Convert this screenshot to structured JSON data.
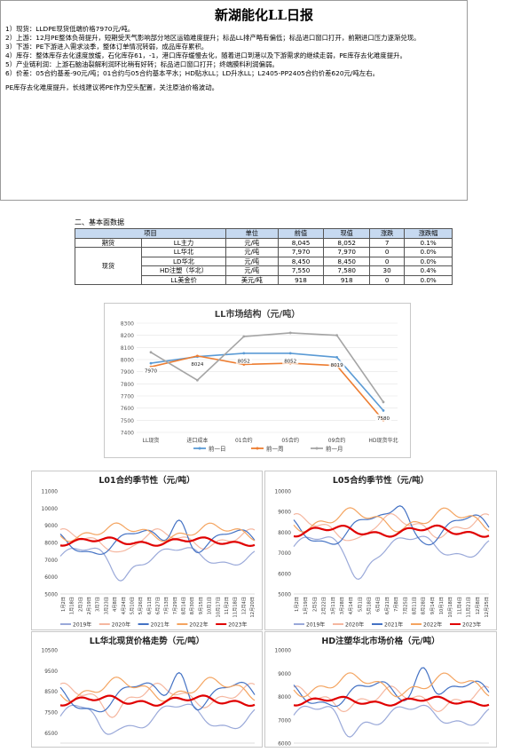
{
  "report": {
    "title": "新湖能化LL日报",
    "lines": [
      "1）现货：LLDPE现货低端价格7970元/吨。",
      "2）上游：12月PE整体负荷提升，短期受天气影响部分地区运输难度提升；标品LL排产略有偏低；标品进口窗口打开，前期进口压力逐渐兑现。",
      "3）下游：PE下游进入需求淡季，整体订单情况转弱，成品库存累积。",
      "4）库存：整体库存去化速度放缓，石化库存61，-1，港口库存缓慢去化，随着进口到港以及下游需求的继续走弱，PE库存去化难度提升。",
      "5）产业链利润：上游石脑油裂解利润环比稍有好转；标品进口窗口打开；终端膜料利润偏弱。",
      "6）价差：05合约基差-90元/吨；01合约与05合约基本平水；HD贴水LL；LD升水LL；L2405-PP2405合约价差620元/吨左右。"
    ],
    "conclusion": "PE库存去化难度提升，长线建议将PE作为空头配置，关注原油价格波动。"
  },
  "section_title": "二、基本面数据",
  "table": {
    "headers": [
      "项目",
      "",
      "单位",
      "前值",
      "现值",
      "涨跌",
      "涨跌幅"
    ],
    "rows": [
      {
        "group": "期货",
        "item": "LL主力",
        "unit": "元/吨",
        "prev": "8,045",
        "curr": "8,052",
        "chg": "7",
        "pct": "0.1%"
      },
      {
        "group": "现货",
        "item": "LL华北",
        "unit": "元/吨",
        "prev": "7,970",
        "curr": "7,970",
        "chg": "0",
        "pct": "0.0%"
      },
      {
        "group": "",
        "item": "LD华北",
        "unit": "元/吨",
        "prev": "8,450",
        "curr": "8,450",
        "chg": "0",
        "pct": "0.0%"
      },
      {
        "group": "",
        "item": "HD注塑（华北）",
        "unit": "元/吨",
        "prev": "7,550",
        "curr": "7,580",
        "chg": "30",
        "pct": "0.4%"
      },
      {
        "group": "",
        "item": "LL美金价",
        "unit": "美元/吨",
        "prev": "918",
        "curr": "918",
        "chg": "0",
        "pct": "0.0%"
      }
    ]
  },
  "chart_data": [
    {
      "type": "line",
      "title": "LL市场结构（元/吨）",
      "categories": [
        "LL现货",
        "进口成本",
        "01合约",
        "05合约",
        "09合约",
        "HD现货华北"
      ],
      "ylim": [
        7400,
        8300
      ],
      "yticks": [
        7400,
        7500,
        7600,
        7700,
        7800,
        7900,
        8000,
        8100,
        8200,
        8300
      ],
      "series": [
        {
          "name": "前一日",
          "color": "#5b9bd5",
          "values": [
            7970,
            8024,
            8052,
            8052,
            8019,
            7580
          ]
        },
        {
          "name": "前一周",
          "color": "#ed7d31",
          "values": [
            7940,
            8030,
            7960,
            7970,
            7950,
            7500
          ]
        },
        {
          "name": "前一月",
          "color": "#a5a5a5",
          "values": [
            8060,
            7830,
            8190,
            8220,
            8200,
            7650
          ]
        }
      ],
      "data_labels": [
        "7970",
        "8024",
        "8052",
        "8052",
        "8019",
        "7580"
      ]
    },
    {
      "type": "line",
      "title": "L01合约季节性（元/吨）",
      "ylim": [
        5000,
        11000
      ],
      "yticks": [
        5000,
        6000,
        7000,
        8000,
        9000,
        10000,
        11000
      ],
      "x_ticks": [
        "1月2日",
        "1月18日",
        "2月3日",
        "2月19日",
        "3月7日",
        "3月23日",
        "4月8日",
        "4月24日",
        "5月10日",
        "5月26日",
        "6月11日",
        "6月27日",
        "7月13日",
        "7月29日",
        "8月14日",
        "8月30日",
        "9月15日",
        "10月1日",
        "10月17日",
        "11月2日",
        "11月18日",
        "12月4日",
        "12月20日"
      ],
      "series": [
        {
          "name": "2019年",
          "color": "#9aa9d9"
        },
        {
          "name": "2020年",
          "color": "#f5b7a0"
        },
        {
          "name": "2021年",
          "color": "#4472c4"
        },
        {
          "name": "2022年",
          "color": "#f4a460"
        },
        {
          "name": "2023年",
          "color": "#e00000"
        }
      ]
    },
    {
      "type": "line",
      "title": "L05合约季节性（元/吨）",
      "ylim": [
        5000,
        10000
      ],
      "yticks": [
        5000,
        6000,
        7000,
        8000,
        9000,
        10000
      ],
      "x_ticks": [
        "1月2日",
        "1月19日",
        "2月5日",
        "2月22日",
        "3月11日",
        "3月28日",
        "4月14日",
        "5月1日",
        "5月18日",
        "6月4日",
        "6月21日",
        "7月8日",
        "7月25日",
        "8月11日",
        "8月28日",
        "9月14日",
        "10月1日",
        "10月18日",
        "11月4日",
        "11月21日",
        "12月8日",
        "12月25日"
      ],
      "series": [
        {
          "name": "2019年",
          "color": "#9aa9d9"
        },
        {
          "name": "2020年",
          "color": "#f5b7a0"
        },
        {
          "name": "2021年",
          "color": "#4472c4"
        },
        {
          "name": "2022年",
          "color": "#f4a460"
        },
        {
          "name": "2023年",
          "color": "#e00000"
        }
      ]
    },
    {
      "type": "line",
      "title": "LL华北现货价格走势（元/吨）",
      "ylim": [
        6000,
        10500
      ],
      "yticks": [
        6500,
        7500,
        8500,
        9500,
        10500
      ]
    },
    {
      "type": "line",
      "title": "HD注塑华北市场价格（元/吨）",
      "ylim": [
        6000,
        10000
      ],
      "yticks": [
        6000,
        7000,
        8000,
        9000,
        10000
      ]
    }
  ]
}
